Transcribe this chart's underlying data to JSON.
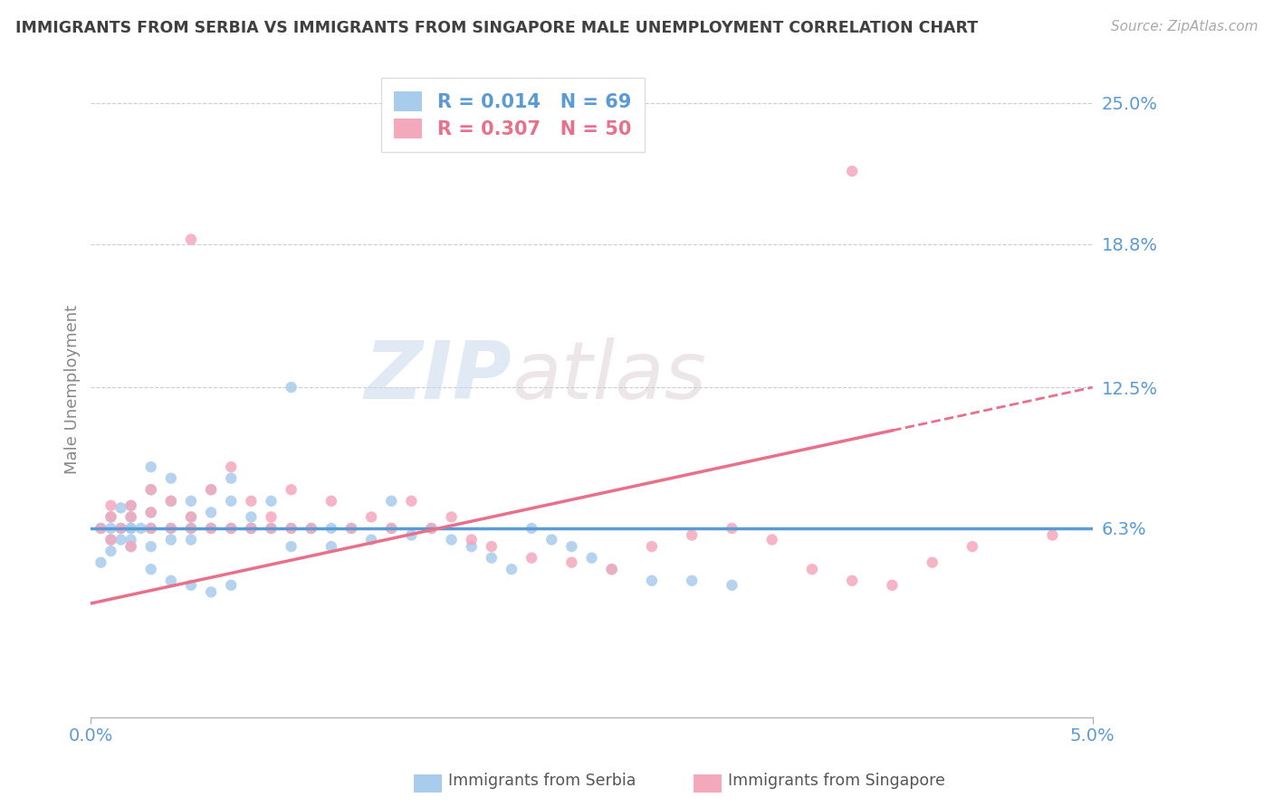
{
  "title": "IMMIGRANTS FROM SERBIA VS IMMIGRANTS FROM SINGAPORE MALE UNEMPLOYMENT CORRELATION CHART",
  "source_text": "Source: ZipAtlas.com",
  "ylabel": "Male Unemployment",
  "yticks": [
    0.0,
    0.063,
    0.125,
    0.188,
    0.25
  ],
  "ytick_labels": [
    "",
    "6.3%",
    "12.5%",
    "18.8%",
    "25.0%"
  ],
  "xlim": [
    0.0,
    0.05
  ],
  "ylim": [
    -0.02,
    0.268
  ],
  "serbia_color": "#A8CCEB",
  "singapore_color": "#F4A8BC",
  "serbia_R": 0.014,
  "serbia_N": 69,
  "singapore_R": 0.307,
  "singapore_N": 50,
  "watermark_zip": "ZIP",
  "watermark_atlas": "atlas",
  "background_color": "#FFFFFF",
  "grid_color": "#CCCCCC",
  "axis_label_color": "#5B9BD5",
  "title_color": "#404040",
  "serbia_line_color": "#5B9BD5",
  "singapore_line_color": "#E8708A",
  "serbia_line_solid_end": 0.05,
  "singapore_line_solid_end": 0.04,
  "singapore_line_dashed_start": 0.04,
  "singapore_line_dashed_end": 0.05,
  "serbia_trend_y0": 0.063,
  "serbia_trend_y1": 0.063,
  "singapore_trend_y0": 0.03,
  "singapore_trend_y1": 0.125
}
